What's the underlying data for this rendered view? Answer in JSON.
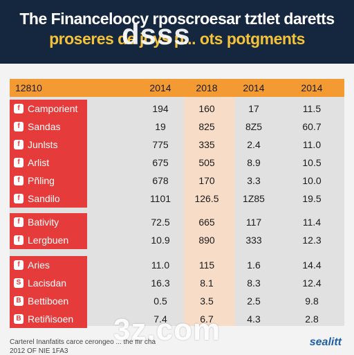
{
  "header": {
    "title_line1": "The Financeloocy rposcroesar tztlet daretts",
    "title_line2": "proseres de joys p... ots potgments"
  },
  "watermarks": {
    "top": "dsss",
    "bottom": "3z.com"
  },
  "footer": {
    "source_line1": "Carterel Inanfatits carce cerongeo ... the ffir cha",
    "source_line2": "2012 OF NIE 1FA3",
    "logo": "sealitt"
  },
  "colors": {
    "header_bg": "#15273f",
    "title_accent": "#f4c23a",
    "row_label_bg": "#e63b3b",
    "column_header_bg": "#f39a33",
    "highlight_column_bg": "#f7dcc8"
  },
  "chart_data": {
    "type": "table",
    "corner_label": "12810",
    "columns": [
      "2014",
      "2018",
      "2014",
      "2014"
    ],
    "highlighted_column": 1,
    "rows": [
      {
        "icon": "f",
        "label": "Camporient",
        "values": [
          "194",
          "160",
          "17",
          "11.5"
        ]
      },
      {
        "icon": "f",
        "label": "Sandas",
        "values": [
          "19",
          "825",
          "8Z5",
          "60.7"
        ]
      },
      {
        "icon": "f",
        "label": "Junlsts",
        "values": [
          "775",
          "335",
          "2.4",
          "11.0"
        ]
      },
      {
        "icon": "f",
        "label": "Arlist",
        "values": [
          "675",
          "505",
          "8.9",
          "10.5"
        ]
      },
      {
        "icon": "f",
        "label": "Pñling",
        "values": [
          "678",
          "170",
          "3.3",
          "10.0"
        ]
      },
      {
        "icon": "f",
        "label": "Sandilo",
        "values": [
          "1101",
          "126.5",
          "1Z85",
          "19.5"
        ]
      },
      {
        "icon": "f",
        "label": "Bativity",
        "values": [
          "72.5",
          "665",
          "117",
          "11.4"
        ]
      },
      {
        "icon": "f",
        "label": "Lergbuen",
        "values": [
          "10.9",
          "890",
          "333",
          "12.3"
        ]
      },
      {
        "icon": "f",
        "label": "Aries",
        "values": [
          "11.0",
          "115",
          "1.6",
          "14.4"
        ]
      },
      {
        "icon": "S",
        "label": "Lacisdan",
        "values": [
          "16.3",
          "8.1",
          "8.3",
          "12.4"
        ]
      },
      {
        "icon": "B",
        "label": "Bettiboen",
        "values": [
          "0.5",
          "3.5",
          "2.5",
          "9.8"
        ]
      },
      {
        "icon": "B",
        "label": "Retiñisoen",
        "values": [
          "7.4",
          "6.7",
          "4.3",
          "2.8"
        ]
      }
    ]
  }
}
